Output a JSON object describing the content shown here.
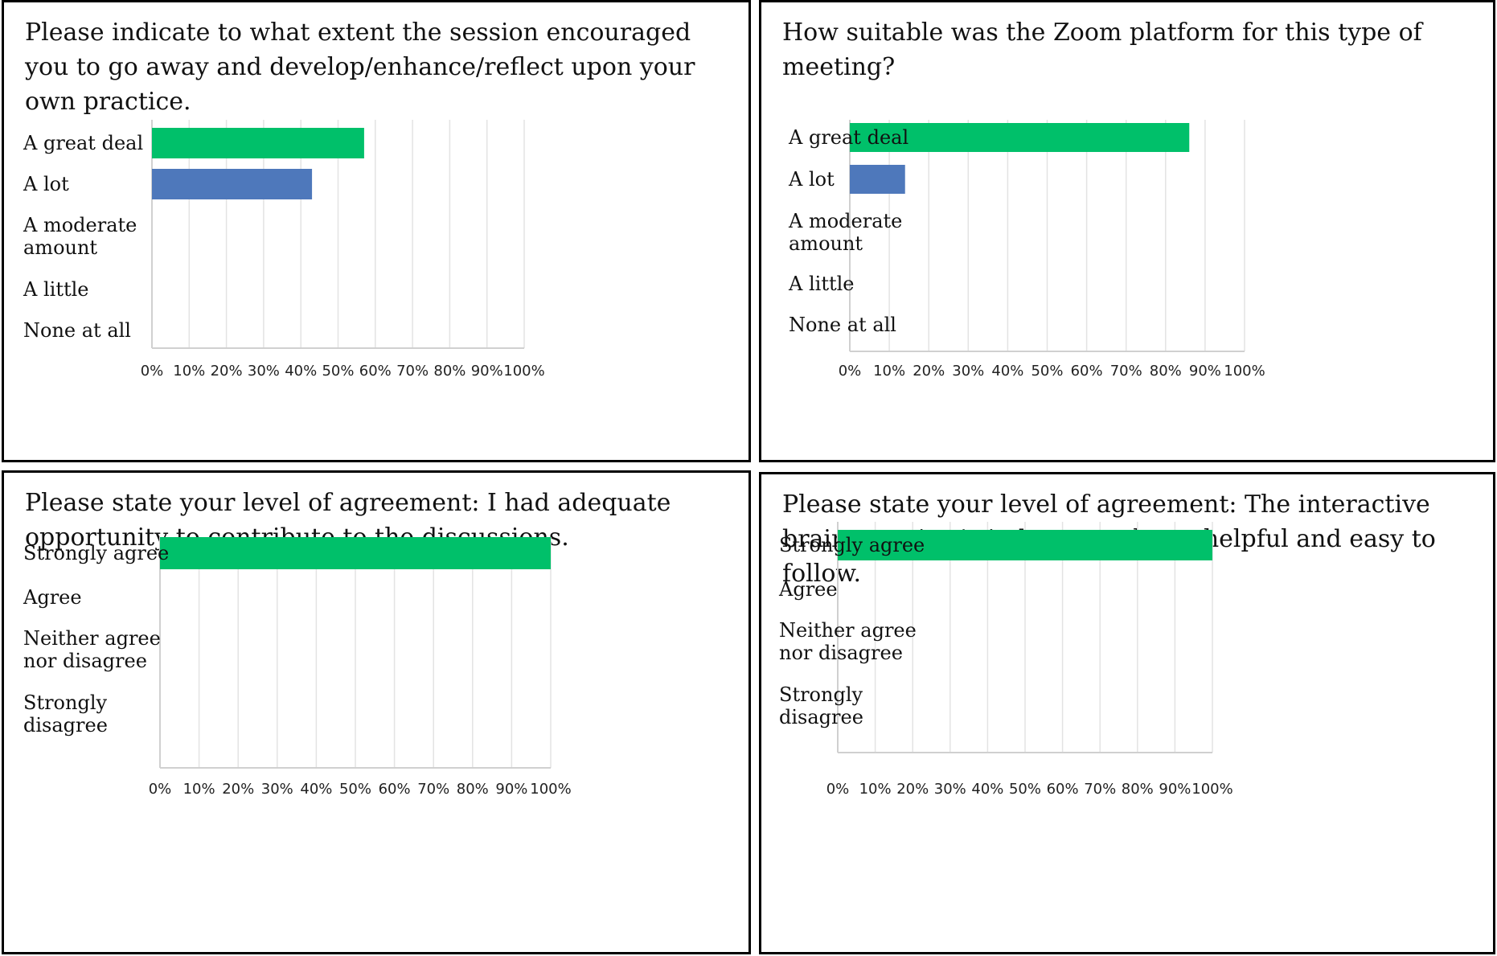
{
  "colors": {
    "green": "#00c06a",
    "blue": "#4e78bb"
  },
  "chart_data": [
    {
      "type": "bar",
      "orientation": "horizontal",
      "title": "Please indicate to what extent the session encouraged you to go away and develop/enhance/reflect upon your own practice.",
      "categories": [
        "A great deal",
        "A lot",
        "A moderate amount",
        "A little",
        "None at all"
      ],
      "category_lines": [
        [
          "A great deal"
        ],
        [
          "A lot"
        ],
        [
          "A moderate",
          "amount"
        ],
        [
          "A little"
        ],
        [
          "None at all"
        ]
      ],
      "values": [
        57,
        43,
        0,
        0,
        0
      ],
      "bar_colors": [
        "#00c06a",
        "#4e78bb",
        "#00c06a",
        "#00c06a",
        "#00c06a"
      ],
      "ticks": [
        "0%",
        "10%",
        "20%",
        "30%",
        "40%",
        "50%",
        "60%",
        "70%",
        "80%",
        "90%",
        "100%"
      ],
      "xlim": [
        0,
        100
      ],
      "grid": true,
      "legend": "none"
    },
    {
      "type": "bar",
      "orientation": "horizontal",
      "title": "How suitable was the Zoom platform for this type of meeting?",
      "categories": [
        "A great deal",
        "A lot",
        "A moderate amount",
        "A little",
        "None at all"
      ],
      "category_lines": [
        [
          "A great deal"
        ],
        [
          "A lot"
        ],
        [
          "A moderate",
          "amount"
        ],
        [
          "A little"
        ],
        [
          "None at all"
        ]
      ],
      "values": [
        86,
        14,
        0,
        0,
        0
      ],
      "bar_colors": [
        "#00c06a",
        "#4e78bb",
        "#00c06a",
        "#00c06a",
        "#00c06a"
      ],
      "ticks": [
        "0%",
        "10%",
        "20%",
        "30%",
        "40%",
        "50%",
        "60%",
        "70%",
        "80%",
        "90%",
        "100%"
      ],
      "xlim": [
        0,
        100
      ],
      "grid": true,
      "legend": "none"
    },
    {
      "type": "bar",
      "orientation": "horizontal",
      "title": "Please state your level of agreement: I had adequate opportunity to contribute to the discussions.",
      "categories": [
        "Strongly agree",
        "Agree",
        "Neither agree nor disagree",
        "Strongly disagree"
      ],
      "category_lines": [
        [
          "Strongly agree"
        ],
        [
          "Agree"
        ],
        [
          "Neither agree",
          "nor disagree"
        ],
        [
          "Strongly",
          "disagree"
        ]
      ],
      "values": [
        100,
        0,
        0,
        0
      ],
      "bar_colors": [
        "#00c06a",
        "#00c06a",
        "#00c06a",
        "#00c06a"
      ],
      "ticks": [
        "0%",
        "10%",
        "20%",
        "30%",
        "40%",
        "50%",
        "60%",
        "70%",
        "80%",
        "90%",
        "100%"
      ],
      "xlim": [
        0,
        100
      ],
      "grid": true,
      "legend": "none"
    },
    {
      "type": "bar",
      "orientation": "horizontal",
      "title": "Please state your level of agreement: The interactive brainstorming/mind map tool was helpful and easy to follow.",
      "categories": [
        "Strongly agree",
        "Agree",
        "Neither agree nor disagree",
        "Strongly disagree"
      ],
      "category_lines": [
        [
          "Strongly agree"
        ],
        [
          "Agree"
        ],
        [
          "Neither agree",
          "nor disagree"
        ],
        [
          "Strongly",
          "disagree"
        ]
      ],
      "values": [
        100,
        0,
        0,
        0
      ],
      "bar_colors": [
        "#00c06a",
        "#00c06a",
        "#00c06a",
        "#00c06a"
      ],
      "ticks": [
        "0%",
        "10%",
        "20%",
        "30%",
        "40%",
        "50%",
        "60%",
        "70%",
        "80%",
        "90%",
        "100%"
      ],
      "xlim": [
        0,
        100
      ],
      "grid": true,
      "legend": "none"
    }
  ]
}
